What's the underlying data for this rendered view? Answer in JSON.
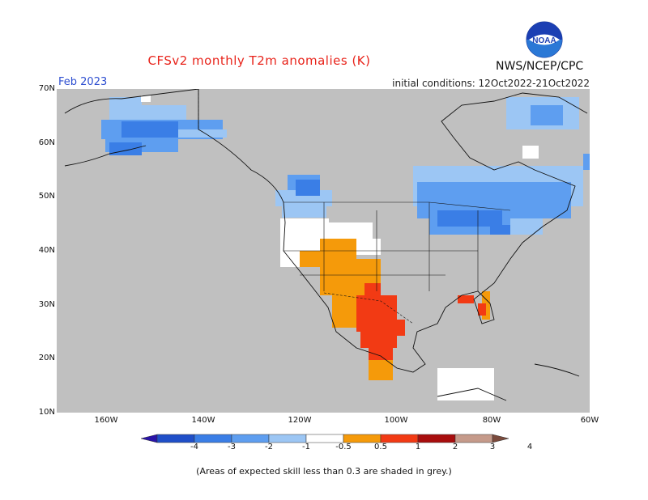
{
  "header": {
    "title": "CFSv2 monthly T2m anomalies (K)",
    "month": "Feb 2023",
    "initial_conditions": "initial conditions: 12Oct2022-21Oct2022",
    "agency": "NWS/NCEP/CPC",
    "logo_text": "NOAA"
  },
  "axes": {
    "lat_labels": [
      "70N",
      "60N",
      "50N",
      "40N",
      "30N",
      "20N",
      "10N"
    ],
    "lon_labels": [
      "160W",
      "140W",
      "120W",
      "100W",
      "80W",
      "60W"
    ]
  },
  "colorbar": {
    "labels": [
      "-4",
      "-3",
      "-2",
      "-1",
      "-0.5",
      "0.5",
      "1",
      "2",
      "3",
      "4"
    ],
    "colors": [
      "#2a14a8",
      "#1f4fc8",
      "#3a7ee6",
      "#5e9ef0",
      "#9cc6f4",
      "#ffffff",
      "#f59a0a",
      "#f23a14",
      "#a80d0d",
      "#c59a8a",
      "#7a4a3c"
    ]
  },
  "colors": {
    "skill_grey": "#c0c0c0",
    "positive_orange": "#f59a0a",
    "positive_red": "#f23a14",
    "negative_blue": "#5e9ef0",
    "negative_deep_blue": "#3a7ee6",
    "light_blue": "#9cc6f4",
    "neutral_white": "#ffffff"
  },
  "footer": {
    "note": "(Areas of expected skill less than 0.3 are shaded in grey.)"
  }
}
